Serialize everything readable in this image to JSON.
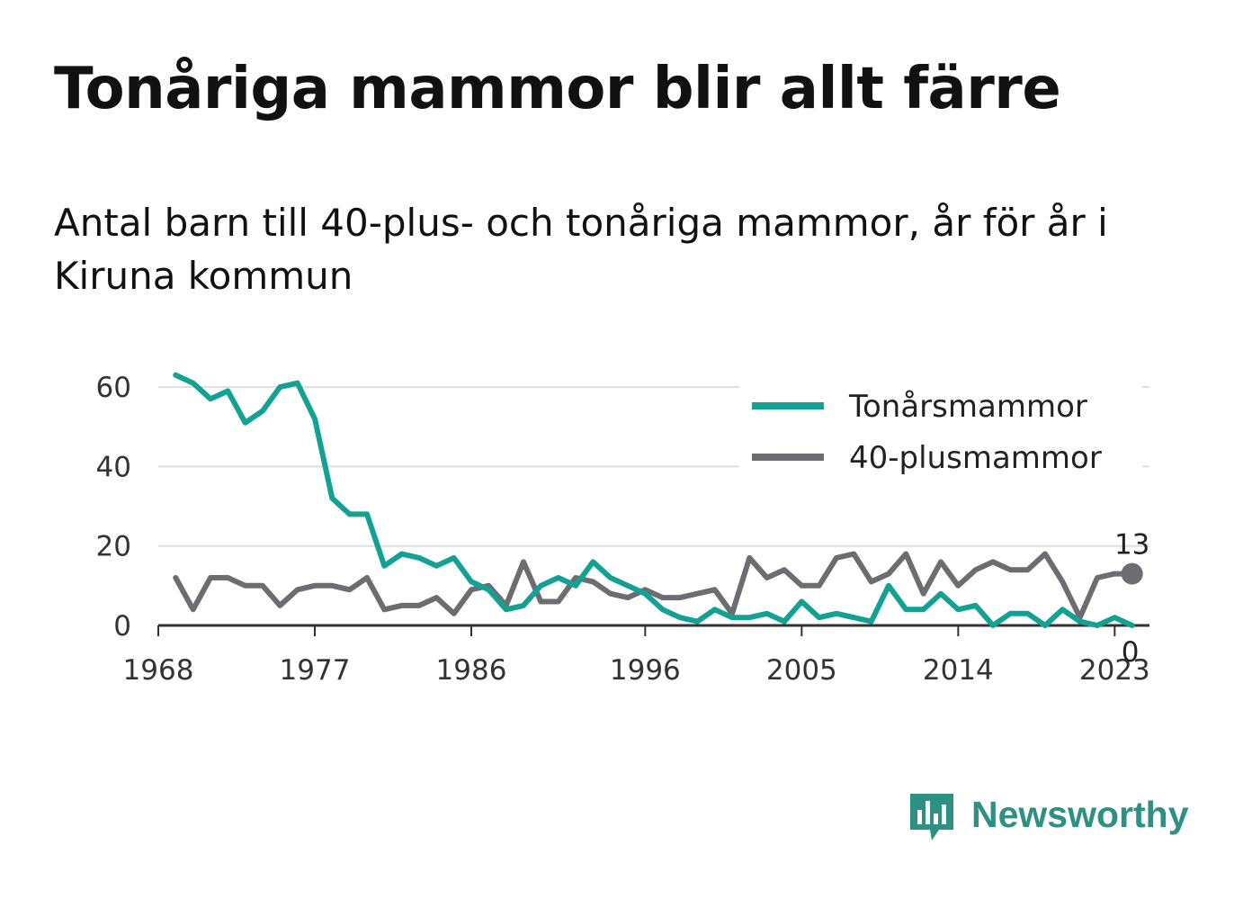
{
  "title": "Tonåriga mammor blir allt färre",
  "subtitle": "Antal barn till 40-plus- och tonåriga mammor, år för år i Kiruna kommun",
  "brand": {
    "name": "Newsworthy",
    "icon": "newsworthy-chat-bars-icon",
    "color": "#2e8f83"
  },
  "chart_data": {
    "type": "line",
    "title": "Tonåriga mammor blir allt färre",
    "subtitle": "Antal barn till 40-plus- och tonåriga mammor, år för år i Kiruna kommun",
    "xlabel": "",
    "ylabel": "",
    "x": [
      1969,
      1970,
      1971,
      1972,
      1973,
      1974,
      1975,
      1976,
      1977,
      1978,
      1979,
      1980,
      1981,
      1982,
      1983,
      1984,
      1985,
      1986,
      1987,
      1988,
      1989,
      1990,
      1991,
      1992,
      1993,
      1994,
      1995,
      1996,
      1997,
      1998,
      1999,
      2000,
      2001,
      2002,
      2003,
      2004,
      2005,
      2006,
      2007,
      2008,
      2009,
      2010,
      2011,
      2012,
      2013,
      2014,
      2015,
      2016,
      2017,
      2018,
      2019,
      2020,
      2021,
      2022,
      2023,
      2024
    ],
    "xticks": [
      "1968",
      "1977",
      "1986",
      "1996",
      "2005",
      "2014",
      "2023"
    ],
    "xlim": [
      1968,
      2025
    ],
    "yticks": [
      "0",
      "20",
      "40",
      "60"
    ],
    "ylim": [
      0,
      65
    ],
    "grid": true,
    "legend_position": "top-right",
    "series": [
      {
        "name": "Tonårsmammor",
        "color": "#12a193",
        "values": [
          63,
          61,
          57,
          59,
          51,
          54,
          60,
          61,
          52,
          32,
          28,
          28,
          15,
          18,
          17,
          15,
          17,
          11,
          9,
          4,
          5,
          10,
          12,
          10,
          16,
          12,
          10,
          8,
          4,
          2,
          1,
          4,
          2,
          2,
          3,
          1,
          6,
          2,
          3,
          2,
          1,
          10,
          4,
          4,
          8,
          4,
          5,
          0,
          3,
          3,
          0,
          4,
          1,
          0,
          2,
          0
        ],
        "end_label": "0"
      },
      {
        "name": "40-plusmammor",
        "color": "#6c6c71",
        "values": [
          12,
          4,
          12,
          12,
          10,
          10,
          5,
          9,
          10,
          10,
          9,
          12,
          4,
          5,
          5,
          7,
          3,
          9,
          10,
          5,
          16,
          6,
          6,
          12,
          11,
          8,
          7,
          9,
          7,
          7,
          8,
          9,
          3,
          17,
          12,
          14,
          10,
          10,
          17,
          18,
          11,
          13,
          18,
          8,
          16,
          10,
          14,
          16,
          14,
          14,
          18,
          11,
          2,
          12,
          13,
          13
        ],
        "end_label": "13"
      }
    ]
  }
}
